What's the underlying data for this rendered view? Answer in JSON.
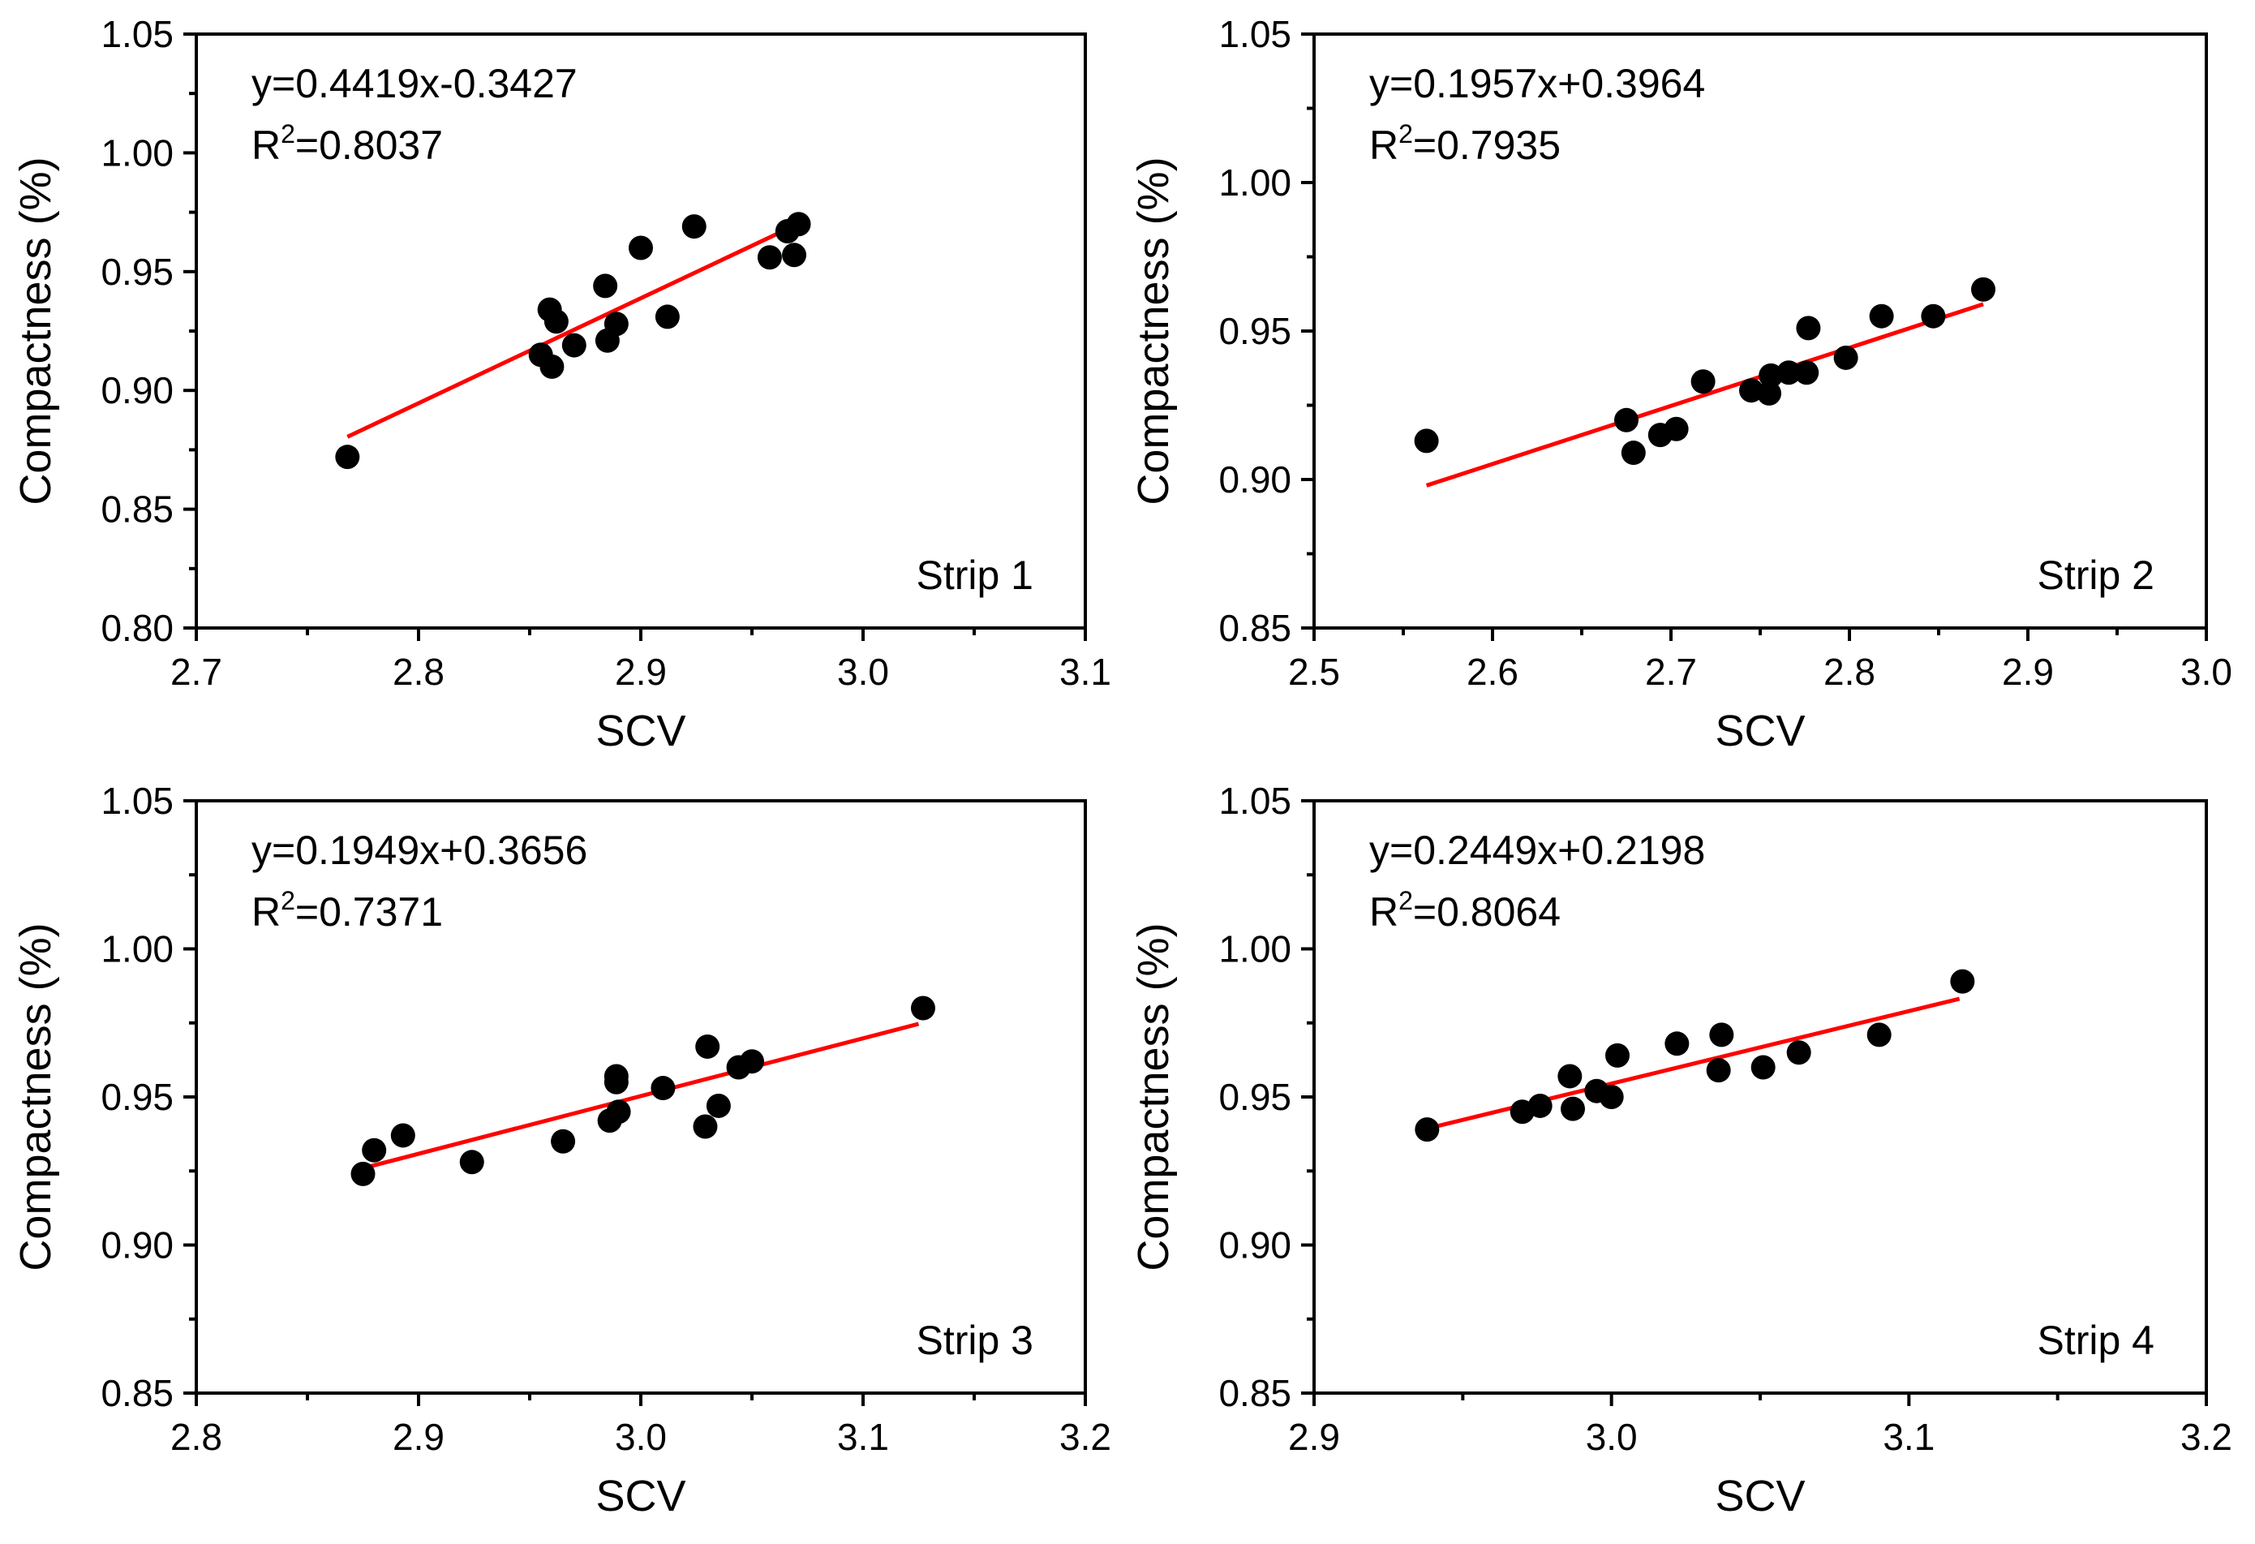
{
  "figure": {
    "panels_layout": "2x2 grid",
    "panel_order": [
      "top-left",
      "top-right",
      "bottom-left",
      "bottom-right"
    ]
  },
  "colors": {
    "point": "#000000",
    "fit_line": "#ff0000",
    "axes": "#000000",
    "background": "#ffffff"
  },
  "chart_data": [
    {
      "type": "scatter",
      "strip_label": "Strip 1",
      "equation": "y=0.4419x-0.3427",
      "r2_prefix": "R",
      "r2_sup": "2",
      "r2_value": "=0.8037",
      "xlabel": "SCV",
      "ylabel": "Compactness (%)",
      "xlim": [
        2.7,
        3.1
      ],
      "ylim": [
        0.8,
        1.05
      ],
      "xticks": [
        "2.7",
        "2.8",
        "2.9",
        "3.0",
        "3.1"
      ],
      "yticks": [
        "0.80",
        "0.85",
        "0.90",
        "0.95",
        "1.00",
        "1.05"
      ],
      "x": [
        2.768,
        2.855,
        2.859,
        2.86,
        2.862,
        2.87,
        2.884,
        2.885,
        2.889,
        2.9,
        2.912,
        2.924,
        2.958,
        2.966,
        2.969,
        2.971
      ],
      "y": [
        0.872,
        0.915,
        0.934,
        0.91,
        0.929,
        0.919,
        0.944,
        0.921,
        0.928,
        0.96,
        0.931,
        0.969,
        0.956,
        0.967,
        0.957,
        0.97
      ],
      "fit": {
        "slope": 0.4419,
        "intercept": -0.3427,
        "x_range": [
          2.768,
          2.965
        ]
      }
    },
    {
      "type": "scatter",
      "strip_label": "Strip 2",
      "equation": "y=0.1957x+0.3964",
      "r2_prefix": "R",
      "r2_sup": "2",
      "r2_value": "=0.7935",
      "xlabel": "SCV",
      "ylabel": "Compactness (%)",
      "xlim": [
        2.5,
        3.0
      ],
      "ylim": [
        0.85,
        1.05
      ],
      "xticks": [
        "2.5",
        "2.6",
        "2.7",
        "2.8",
        "2.9",
        "3.0"
      ],
      "yticks": [
        "0.85",
        "0.90",
        "0.95",
        "1.00",
        "1.05"
      ],
      "x": [
        2.563,
        2.675,
        2.679,
        2.694,
        2.703,
        2.718,
        2.745,
        2.755,
        2.756,
        2.766,
        2.776,
        2.777,
        2.798,
        2.818,
        2.847,
        2.875
      ],
      "y": [
        0.913,
        0.92,
        0.909,
        0.915,
        0.917,
        0.933,
        0.93,
        0.929,
        0.935,
        0.936,
        0.936,
        0.951,
        0.941,
        0.955,
        0.955,
        0.964
      ],
      "fit": {
        "slope": 0.1957,
        "intercept": 0.3964,
        "x_range": [
          2.563,
          2.875
        ]
      }
    },
    {
      "type": "scatter",
      "strip_label": "Strip 3",
      "equation": "y=0.1949x+0.3656",
      "r2_prefix": "R",
      "r2_sup": "2",
      "r2_value": "=0.7371",
      "xlabel": "SCV",
      "ylabel": "Compactness (%)",
      "xlim": [
        2.8,
        3.2
      ],
      "ylim": [
        0.85,
        1.05
      ],
      "xticks": [
        "2.8",
        "2.9",
        "3.0",
        "3.1",
        "3.2"
      ],
      "yticks": [
        "0.85",
        "0.90",
        "0.95",
        "1.00",
        "1.05"
      ],
      "x": [
        2.875,
        2.88,
        2.893,
        2.924,
        2.965,
        2.986,
        2.989,
        2.989,
        2.99,
        3.01,
        3.029,
        3.03,
        3.035,
        3.044,
        3.05,
        3.127
      ],
      "y": [
        0.924,
        0.932,
        0.937,
        0.928,
        0.935,
        0.942,
        0.955,
        0.957,
        0.945,
        0.953,
        0.94,
        0.967,
        0.947,
        0.96,
        0.962,
        0.98
      ],
      "fit": {
        "slope": 0.1949,
        "intercept": 0.3656,
        "x_range": [
          2.875,
          3.125
        ]
      }
    },
    {
      "type": "scatter",
      "strip_label": "Strip 4",
      "equation": "y=0.2449x+0.2198",
      "r2_prefix": "R",
      "r2_sup": "2",
      "r2_value": "=0.8064",
      "xlabel": "SCV",
      "ylabel": "Compactness (%)",
      "xlim": [
        2.9,
        3.2
      ],
      "ylim": [
        0.85,
        1.05
      ],
      "xticks": [
        "2.9",
        "3.0",
        "3.1",
        "3.2"
      ],
      "yticks": [
        "0.85",
        "0.90",
        "0.95",
        "1.00",
        "1.05"
      ],
      "x": [
        2.938,
        2.97,
        2.976,
        2.986,
        2.987,
        2.995,
        3.0,
        3.002,
        3.022,
        3.036,
        3.037,
        3.051,
        3.063,
        3.09,
        3.118
      ],
      "y": [
        0.939,
        0.945,
        0.947,
        0.957,
        0.946,
        0.952,
        0.95,
        0.964,
        0.968,
        0.959,
        0.971,
        0.96,
        0.965,
        0.971,
        0.989
      ],
      "fit": {
        "slope": 0.2449,
        "intercept": 0.2198,
        "x_range": [
          2.938,
          3.117
        ]
      }
    }
  ]
}
